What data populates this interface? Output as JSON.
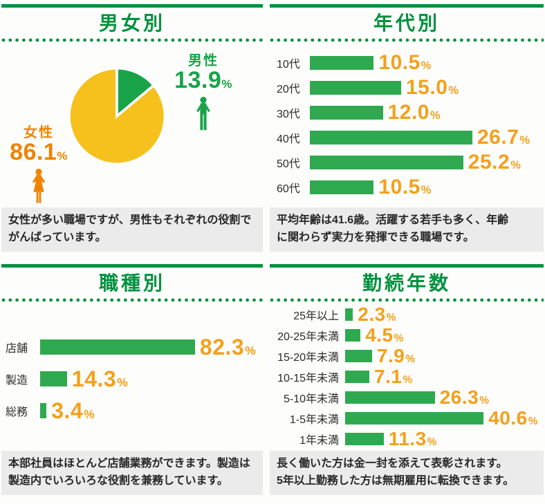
{
  "palette": {
    "green_dark": "#00913f",
    "green_bar": "#2fa94f",
    "green_pie": "#18a349",
    "yellow": "#f6c11d",
    "orange_value": "#f4a01c",
    "orange_female": "#f08300",
    "caption_bg": "#ebebeb",
    "text_dark": "#262626"
  },
  "panels": {
    "gender": {
      "caption_lines": [
        "女性が多い職場ですが、男性もそれぞれの役割で",
        "がんばっています。"
      ]
    },
    "age": {
      "caption_lines": [
        "平均年齢は41.6歳。活躍する若手も多く、年齢",
        "に関わらず実力を発揮できる職場です。"
      ]
    },
    "job": {
      "caption_lines": [
        "本部社員はほとんど店舗業務ができます。製造は",
        "製造内でいろいろな役割を兼務しています。"
      ]
    },
    "tenure": {
      "caption_lines": [
        "長く働いた方は金一封を添えて表彰されます。",
        "5年以上勤務した方は無期雇用に転換できます。"
      ]
    }
  },
  "chart_data": [
    {
      "key": "gender",
      "type": "pie",
      "title": "男女別",
      "labels": [
        "女性",
        "男性"
      ],
      "values": [
        86.1,
        13.9
      ],
      "unit": "%",
      "colors": [
        "#f6c11d",
        "#18a349"
      ],
      "legend_icons": [
        "female-figure",
        "male-figure"
      ],
      "legend_position": "female-left, male-right"
    },
    {
      "key": "age",
      "type": "bar",
      "orientation": "horizontal",
      "title": "年代別",
      "categories": [
        "10代",
        "20代",
        "30代",
        "40代",
        "50代",
        "60代"
      ],
      "values": [
        10.5,
        15.0,
        12.0,
        26.7,
        25.2,
        10.5
      ],
      "unit": "%",
      "xlim": [
        0,
        30
      ],
      "bar_color": "#2fa94f",
      "value_label_color": "#f4a01c",
      "grid": false
    },
    {
      "key": "job",
      "type": "bar",
      "orientation": "horizontal",
      "title": "職種別",
      "categories": [
        "店舗",
        "製造",
        "総務"
      ],
      "values": [
        82.3,
        14.3,
        3.4
      ],
      "unit": "%",
      "xlim": [
        0,
        100
      ],
      "bar_color": "#2fa94f",
      "value_label_color": "#f4a01c",
      "grid": false
    },
    {
      "key": "tenure",
      "type": "bar",
      "orientation": "horizontal",
      "title": "勤続年数",
      "categories": [
        "25年以上",
        "20-25年未満",
        "15-20年未満",
        "10-15年未満",
        "5-10年未満",
        "1-5年未満",
        "1年未満"
      ],
      "values": [
        2.3,
        4.5,
        7.9,
        7.1,
        26.3,
        40.6,
        11.3
      ],
      "unit": "%",
      "xlim": [
        0,
        45
      ],
      "bar_color": "#2fa94f",
      "value_label_color": "#f4a01c",
      "grid": false
    }
  ]
}
